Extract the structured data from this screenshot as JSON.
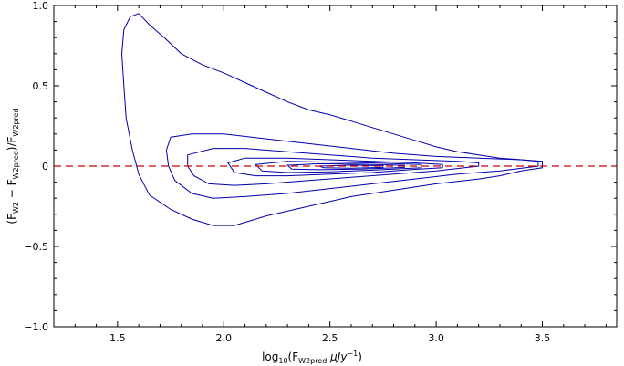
{
  "chart_data": {
    "type": "contour",
    "title": "",
    "xlabel_parts": {
      "pre": "log",
      "sub10": "10",
      "open": "(F",
      "sub": "W2pred",
      "mid": " μJy",
      "sup": "−1",
      "close": ")"
    },
    "ylabel_parts": {
      "open": "(F",
      "sub1": "W2",
      "minus": " − F",
      "sub2": "W2pred",
      "slash": ")/F",
      "sub3": "W2pred"
    },
    "xlim": [
      1.2,
      3.85
    ],
    "ylim": [
      -1.0,
      1.0
    ],
    "x_ticks": [
      1.5,
      2.0,
      2.5,
      3.0,
      3.5
    ],
    "x_tick_labels": [
      "1.5",
      "2.0",
      "2.5",
      "3.0",
      "3.5"
    ],
    "y_ticks": [
      -1.0,
      -0.5,
      0.0,
      0.5,
      1.0
    ],
    "y_tick_labels": [
      "−1.0",
      "−0.5",
      "0",
      "0.5",
      "1.0"
    ],
    "reference_line": {
      "y": 0.0,
      "color": "#cc0000",
      "style": "dashed"
    },
    "contour_color": "#0000aa",
    "contours": [
      {
        "level": 1,
        "points": [
          [
            1.56,
            0.93
          ],
          [
            1.6,
            0.95
          ],
          [
            1.65,
            0.88
          ],
          [
            1.72,
            0.8
          ],
          [
            1.8,
            0.7
          ],
          [
            1.9,
            0.63
          ],
          [
            2.0,
            0.58
          ],
          [
            2.1,
            0.52
          ],
          [
            2.2,
            0.46
          ],
          [
            2.3,
            0.4
          ],
          [
            2.4,
            0.35
          ],
          [
            2.5,
            0.32
          ],
          [
            2.6,
            0.28
          ],
          [
            2.7,
            0.24
          ],
          [
            2.8,
            0.2
          ],
          [
            2.9,
            0.16
          ],
          [
            3.0,
            0.12
          ],
          [
            3.1,
            0.09
          ],
          [
            3.2,
            0.07
          ],
          [
            3.3,
            0.05
          ],
          [
            3.4,
            0.04
          ],
          [
            3.5,
            0.03
          ],
          [
            3.5,
            -0.01
          ],
          [
            3.4,
            -0.03
          ],
          [
            3.3,
            -0.06
          ],
          [
            3.2,
            -0.08
          ],
          [
            3.0,
            -0.11
          ],
          [
            2.8,
            -0.15
          ],
          [
            2.6,
            -0.19
          ],
          [
            2.4,
            -0.25
          ],
          [
            2.2,
            -0.31
          ],
          [
            2.05,
            -0.37
          ],
          [
            1.95,
            -0.37
          ],
          [
            1.85,
            -0.33
          ],
          [
            1.75,
            -0.27
          ],
          [
            1.65,
            -0.18
          ],
          [
            1.6,
            -0.05
          ],
          [
            1.57,
            0.1
          ],
          [
            1.54,
            0.3
          ],
          [
            1.53,
            0.5
          ],
          [
            1.52,
            0.7
          ],
          [
            1.53,
            0.85
          ],
          [
            1.56,
            0.93
          ]
        ]
      },
      {
        "level": 2,
        "points": [
          [
            1.75,
            0.18
          ],
          [
            1.85,
            0.2
          ],
          [
            2.0,
            0.2
          ],
          [
            2.2,
            0.17
          ],
          [
            2.4,
            0.14
          ],
          [
            2.6,
            0.11
          ],
          [
            2.8,
            0.08
          ],
          [
            3.0,
            0.06
          ],
          [
            3.2,
            0.05
          ],
          [
            3.4,
            0.04
          ],
          [
            3.48,
            0.03
          ],
          [
            3.48,
            0.0
          ],
          [
            3.3,
            -0.03
          ],
          [
            3.1,
            -0.05
          ],
          [
            2.9,
            -0.08
          ],
          [
            2.7,
            -0.11
          ],
          [
            2.5,
            -0.14
          ],
          [
            2.3,
            -0.17
          ],
          [
            2.1,
            -0.19
          ],
          [
            1.95,
            -0.2
          ],
          [
            1.85,
            -0.17
          ],
          [
            1.77,
            -0.09
          ],
          [
            1.74,
            0.0
          ],
          [
            1.73,
            0.1
          ],
          [
            1.75,
            0.18
          ]
        ]
      },
      {
        "level": 3,
        "points": [
          [
            1.83,
            0.07
          ],
          [
            1.95,
            0.11
          ],
          [
            2.1,
            0.11
          ],
          [
            2.3,
            0.09
          ],
          [
            2.5,
            0.07
          ],
          [
            2.7,
            0.05
          ],
          [
            2.9,
            0.04
          ],
          [
            3.1,
            0.03
          ],
          [
            3.2,
            0.02
          ],
          [
            3.2,
            0.0
          ],
          [
            3.0,
            -0.03
          ],
          [
            2.8,
            -0.05
          ],
          [
            2.6,
            -0.07
          ],
          [
            2.4,
            -0.09
          ],
          [
            2.2,
            -0.11
          ],
          [
            2.05,
            -0.12
          ],
          [
            1.93,
            -0.11
          ],
          [
            1.86,
            -0.06
          ],
          [
            1.83,
            0.0
          ],
          [
            1.83,
            0.07
          ]
        ]
      },
      {
        "level": 4,
        "points": [
          [
            2.02,
            0.02
          ],
          [
            2.1,
            0.05
          ],
          [
            2.3,
            0.05
          ],
          [
            2.5,
            0.04
          ],
          [
            2.7,
            0.03
          ],
          [
            2.9,
            0.02
          ],
          [
            3.03,
            0.01
          ],
          [
            3.03,
            -0.01
          ],
          [
            2.9,
            -0.02
          ],
          [
            2.7,
            -0.04
          ],
          [
            2.5,
            -0.05
          ],
          [
            2.3,
            -0.06
          ],
          [
            2.15,
            -0.06
          ],
          [
            2.05,
            -0.04
          ],
          [
            2.02,
            0.02
          ]
        ]
      },
      {
        "level": 5,
        "points": [
          [
            2.15,
            0.01
          ],
          [
            2.3,
            0.03
          ],
          [
            2.5,
            0.025
          ],
          [
            2.7,
            0.02
          ],
          [
            2.93,
            0.01
          ],
          [
            2.93,
            -0.01
          ],
          [
            2.7,
            -0.025
          ],
          [
            2.5,
            -0.035
          ],
          [
            2.3,
            -0.04
          ],
          [
            2.18,
            -0.03
          ],
          [
            2.15,
            0.01
          ]
        ]
      },
      {
        "level": 6,
        "points": [
          [
            2.3,
            0.005
          ],
          [
            2.45,
            0.015
          ],
          [
            2.65,
            0.012
          ],
          [
            2.85,
            0.005
          ],
          [
            2.85,
            -0.008
          ],
          [
            2.65,
            -0.018
          ],
          [
            2.45,
            -0.022
          ],
          [
            2.32,
            -0.018
          ],
          [
            2.3,
            0.005
          ]
        ]
      },
      {
        "level": 7,
        "points": [
          [
            2.45,
            0.0
          ],
          [
            2.6,
            0.006
          ],
          [
            2.75,
            0.002
          ],
          [
            2.75,
            -0.008
          ],
          [
            2.6,
            -0.013
          ],
          [
            2.47,
            -0.01
          ],
          [
            2.45,
            0.0
          ]
        ]
      }
    ]
  }
}
